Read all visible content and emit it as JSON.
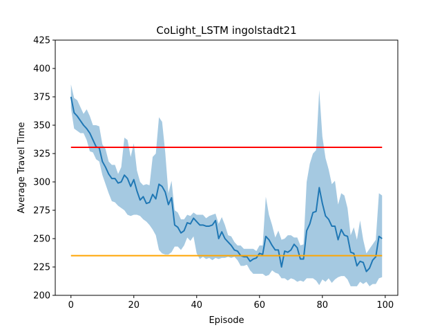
{
  "chart_data": {
    "type": "line",
    "title": "CoLight_LSTM ingolstadt21",
    "xlabel": "Episode",
    "ylabel": "Average Travel Time",
    "xlim": [
      -5,
      104
    ],
    "ylim": [
      200,
      425
    ],
    "xticks": [
      0,
      20,
      40,
      60,
      80,
      100
    ],
    "yticks": [
      200,
      225,
      250,
      275,
      300,
      325,
      350,
      375,
      400,
      425
    ],
    "grid": false,
    "series": [
      {
        "kind": "mean",
        "color": "#1f77b4",
        "x": [
          0,
          1,
          2,
          3,
          4,
          5,
          6,
          7,
          8,
          9,
          10,
          11,
          12,
          13,
          14,
          15,
          16,
          17,
          18,
          19,
          20,
          21,
          22,
          23,
          24,
          25,
          26,
          27,
          28,
          29,
          30,
          31,
          32,
          33,
          34,
          35,
          36,
          37,
          38,
          39,
          40,
          41,
          42,
          43,
          44,
          45,
          46,
          47,
          48,
          49,
          50,
          51,
          52,
          53,
          54,
          55,
          56,
          57,
          58,
          59,
          60,
          61,
          62,
          63,
          64,
          65,
          66,
          67,
          68,
          69,
          70,
          71,
          72,
          73,
          74,
          75,
          76,
          77,
          78,
          79,
          80,
          81,
          82,
          83,
          84,
          85,
          86,
          87,
          88,
          89,
          90,
          91,
          92,
          93,
          94,
          95,
          96,
          97,
          98,
          99
        ],
        "y": [
          375,
          361,
          358,
          354,
          350,
          347,
          343,
          337,
          331,
          330,
          318,
          313,
          307,
          303,
          303,
          299,
          300,
          306,
          303,
          296,
          302,
          292,
          284,
          287,
          281,
          282,
          289,
          285,
          298,
          296,
          291,
          280,
          286,
          262,
          260,
          255,
          257,
          264,
          263,
          268,
          265,
          262,
          262,
          261,
          261,
          262,
          266,
          250,
          256,
          250,
          247,
          244,
          240,
          239,
          235,
          234,
          234,
          230,
          232,
          233,
          237,
          236,
          252,
          249,
          244,
          240,
          240,
          225,
          239,
          238,
          240,
          245,
          242,
          232,
          232,
          257,
          263,
          273,
          274,
          295,
          281,
          270,
          267,
          261,
          261,
          249,
          258,
          253,
          252,
          238,
          237,
          226,
          230,
          229,
          221,
          224,
          231,
          234,
          252,
          250
        ]
      },
      {
        "kind": "band",
        "color": "#1f77b4",
        "opacity": 0.4,
        "x": [
          0,
          1,
          2,
          3,
          4,
          5,
          6,
          7,
          8,
          9,
          10,
          11,
          12,
          13,
          14,
          15,
          16,
          17,
          18,
          19,
          20,
          21,
          22,
          23,
          24,
          25,
          26,
          27,
          28,
          29,
          30,
          31,
          32,
          33,
          34,
          35,
          36,
          37,
          38,
          39,
          40,
          41,
          42,
          43,
          44,
          45,
          46,
          47,
          48,
          49,
          50,
          51,
          52,
          53,
          54,
          55,
          56,
          57,
          58,
          59,
          60,
          61,
          62,
          63,
          64,
          65,
          66,
          67,
          68,
          69,
          70,
          71,
          72,
          73,
          74,
          75,
          76,
          77,
          78,
          79,
          80,
          81,
          82,
          83,
          84,
          85,
          86,
          87,
          88,
          89,
          90,
          91,
          92,
          93,
          94,
          95,
          96,
          97,
          98,
          99
        ],
        "upper": [
          386,
          374,
          372,
          366,
          360,
          364,
          358,
          350,
          350,
          349,
          333,
          329,
          318,
          315,
          315,
          307,
          313,
          339,
          337,
          322,
          334,
          310,
          300,
          297,
          298,
          297,
          322,
          325,
          357,
          353,
          326,
          290,
          301,
          275,
          273,
          267,
          267,
          271,
          270,
          273,
          271,
          271,
          271,
          268,
          270,
          271,
          272,
          263,
          269,
          262,
          253,
          252,
          247,
          244,
          244,
          241,
          241,
          241,
          241,
          239,
          244,
          244,
          287,
          271,
          262,
          251,
          257,
          249,
          250,
          253,
          253,
          251,
          251,
          244,
          245,
          300,
          316,
          325,
          328,
          381,
          340,
          321,
          311,
          298,
          301,
          280,
          290,
          288,
          277,
          253,
          260,
          249,
          266,
          249,
          237,
          241,
          245,
          249,
          290,
          288
        ],
        "lower": [
          365,
          347,
          345,
          343,
          343,
          337,
          327,
          326,
          320,
          318,
          306,
          298,
          290,
          283,
          282,
          279,
          277,
          275,
          271,
          270,
          271,
          271,
          270,
          267,
          265,
          262,
          258,
          253,
          240,
          237,
          236,
          236,
          238,
          243,
          243,
          240,
          244,
          251,
          248,
          252,
          237,
          232,
          234,
          232,
          233,
          231,
          233,
          232,
          233,
          233,
          234,
          233,
          234,
          231,
          226,
          226,
          227,
          222,
          219,
          219,
          219,
          219,
          217,
          218,
          222,
          220,
          219,
          215,
          215,
          213,
          215,
          214,
          212,
          213,
          212,
          215,
          215,
          215,
          213,
          209,
          214,
          212,
          215,
          211,
          214,
          216,
          217,
          217,
          214,
          208,
          208,
          208,
          212,
          210,
          212,
          208,
          210,
          210,
          215,
          216
        ]
      },
      {
        "kind": "hline",
        "color": "#ff0000",
        "y": 330.5,
        "x": [
          0,
          99
        ]
      },
      {
        "kind": "hline",
        "color": "#ffa500",
        "y": 235,
        "x": [
          0,
          99
        ]
      }
    ]
  }
}
